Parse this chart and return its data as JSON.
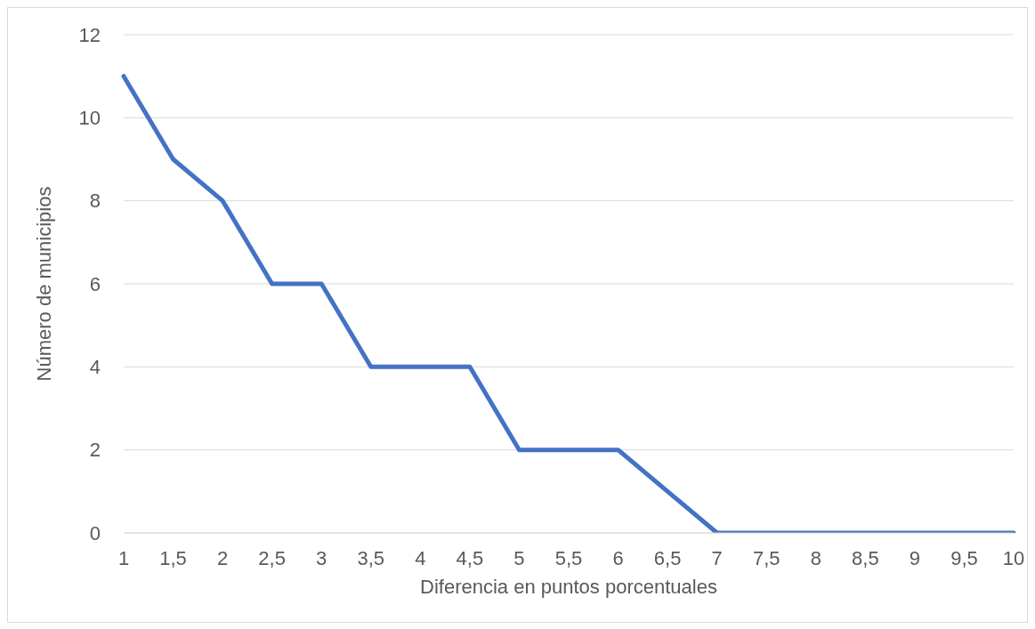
{
  "chart_data": {
    "type": "line",
    "xlabel": "Diferencia en puntos porcentuales",
    "ylabel": "Número de municipios",
    "categories": [
      "1",
      "1,5",
      "2",
      "2,5",
      "3",
      "3,5",
      "4",
      "4,5",
      "5",
      "5,5",
      "6",
      "6,5",
      "7",
      "7,5",
      "8",
      "8,5",
      "9",
      "9,5",
      "10"
    ],
    "series": [
      {
        "color": "#4472c4",
        "values": [
          11,
          9,
          8,
          6,
          6,
          4,
          4,
          4,
          2,
          2,
          2,
          1,
          0,
          0,
          0,
          0,
          0,
          0,
          0
        ]
      }
    ],
    "ylim": [
      0,
      12
    ],
    "yticks": [
      0,
      2,
      4,
      6,
      8,
      10,
      12
    ],
    "grid": "y",
    "marker": "none",
    "line_style": "solid"
  }
}
